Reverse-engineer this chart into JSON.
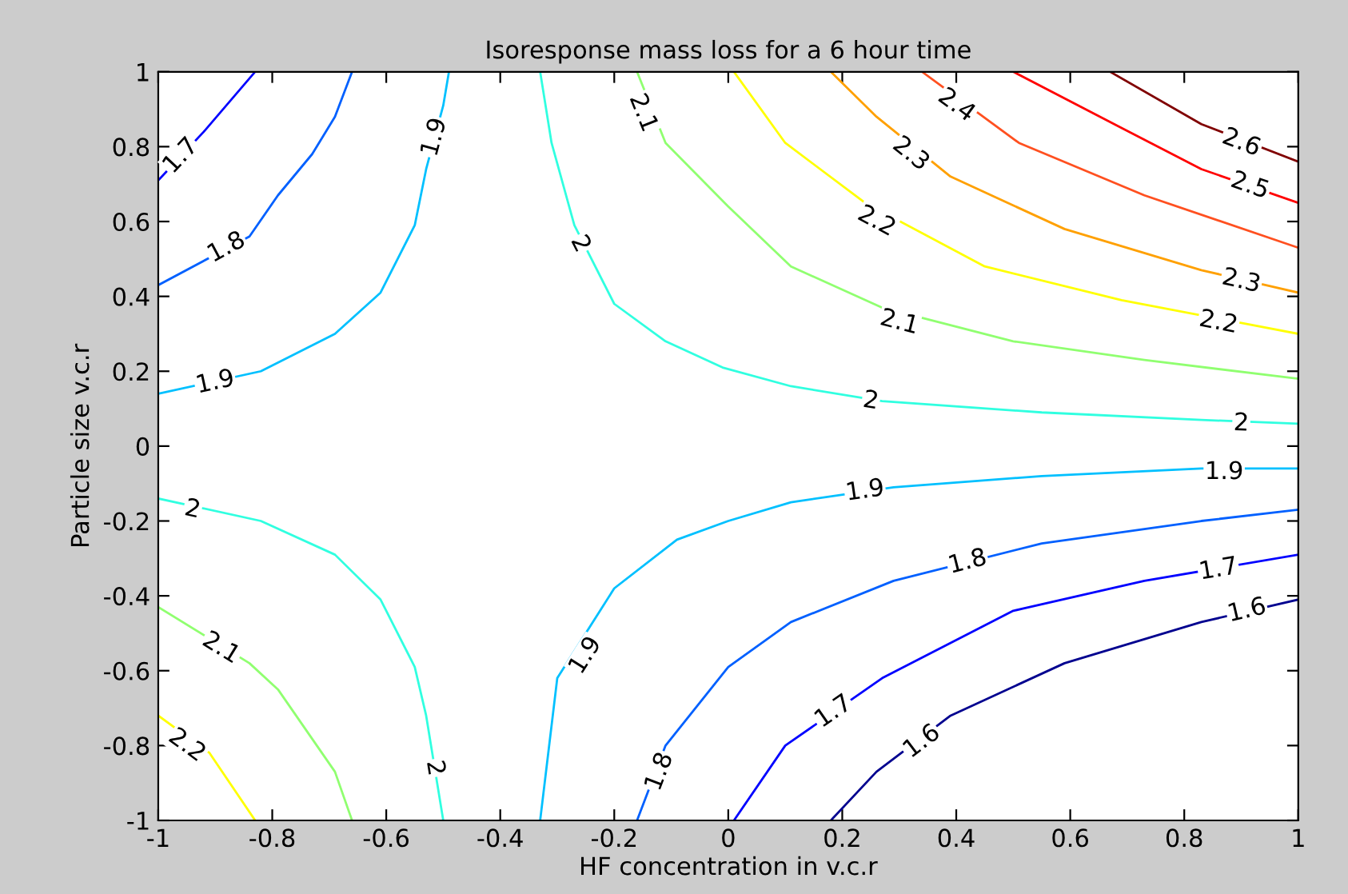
{
  "chart_data": {
    "type": "line",
    "title": "Isoresponse mass loss for a 6 hour time",
    "xlabel": "HF concentration in v.c.r",
    "ylabel": "Particle size v.c.r",
    "xlim": [
      -1,
      1
    ],
    "ylim": [
      -1,
      1
    ],
    "xticks": [
      -1,
      -0.8,
      -0.6,
      -0.4,
      -0.2,
      0,
      0.2,
      0.4,
      0.6,
      0.8,
      1
    ],
    "yticks": [
      -1,
      -0.8,
      -0.6,
      -0.4,
      -0.2,
      0,
      0.2,
      0.4,
      0.6,
      0.8,
      1
    ],
    "grid": false,
    "marker": "none",
    "line_style": "solid",
    "series": [
      {
        "color": "#0000ff",
        "x": [
          -1,
          -0.92,
          -0.83
        ],
        "values": [
          0.71,
          0.84,
          1
        ]
      },
      {
        "color": "#0060ff",
        "x": [
          -1,
          -0.84,
          -0.79,
          -0.73,
          -0.69,
          -0.66
        ],
        "values": [
          0.43,
          0.56,
          0.67,
          0.78,
          0.88,
          1
        ]
      },
      {
        "color": "#00c0ff",
        "x": [
          -1,
          -0.82,
          -0.69,
          -0.61,
          -0.55,
          -0.53,
          -0.5,
          -0.49
        ],
        "values": [
          0.14,
          0.2,
          0.3,
          0.41,
          0.59,
          0.74,
          0.91,
          1
        ]
      },
      {
        "color": "#30ffe0",
        "x": [
          -0.33,
          -0.31,
          -0.27,
          -0.2,
          -0.11,
          -0.01,
          0.11,
          0.27,
          0.55,
          0.83,
          1
        ],
        "values": [
          1,
          0.81,
          0.59,
          0.38,
          0.28,
          0.21,
          0.16,
          0.12,
          0.09,
          0.07,
          0.06
        ]
      },
      {
        "color": "#90ff70",
        "x": [
          -0.16,
          -0.11,
          0,
          0.11,
          0.27,
          0.5,
          0.73,
          1
        ],
        "values": [
          1,
          0.81,
          0.64,
          0.48,
          0.37,
          0.28,
          0.23,
          0.18
        ]
      },
      {
        "color": "#ffff00",
        "x": [
          0.01,
          0.1,
          0.24,
          0.45,
          0.69,
          1
        ],
        "values": [
          1,
          0.81,
          0.65,
          0.48,
          0.39,
          0.3
        ]
      },
      {
        "color": "#ffa000",
        "x": [
          0.18,
          0.26,
          0.39,
          0.59,
          0.83,
          1
        ],
        "values": [
          1,
          0.88,
          0.72,
          0.58,
          0.47,
          0.41
        ]
      },
      {
        "color": "#ff5020",
        "x": [
          0.34,
          0.51,
          0.73,
          1
        ],
        "values": [
          1,
          0.81,
          0.67,
          0.53
        ]
      },
      {
        "color": "#ff0000",
        "x": [
          0.5,
          0.69,
          0.83,
          1
        ],
        "values": [
          1,
          0.85,
          0.74,
          0.65
        ]
      },
      {
        "color": "#800000",
        "x": [
          0.67,
          0.83,
          1
        ],
        "values": [
          1,
          0.86,
          0.76
        ]
      },
      {
        "color": "#30ffe0",
        "x": [
          -1,
          -0.82,
          -0.69,
          -0.61,
          -0.55,
          -0.53,
          -0.5
        ],
        "values": [
          -0.14,
          -0.2,
          -0.29,
          -0.41,
          -0.59,
          -0.72,
          -1
        ]
      },
      {
        "color": "#90ff70",
        "x": [
          -1,
          -0.84,
          -0.79,
          -0.69,
          -0.66
        ],
        "values": [
          -0.43,
          -0.58,
          -0.65,
          -0.87,
          -1
        ]
      },
      {
        "color": "#ffff00",
        "x": [
          -1,
          -0.91,
          -0.83
        ],
        "values": [
          -0.72,
          -0.82,
          -1
        ]
      },
      {
        "color": "#00c0ff",
        "x": [
          -0.33,
          -0.3,
          -0.2,
          -0.09,
          0,
          0.11,
          0.29,
          0.55,
          0.83,
          1
        ],
        "values": [
          -1,
          -0.62,
          -0.38,
          -0.25,
          -0.2,
          -0.15,
          -0.11,
          -0.08,
          -0.06,
          -0.06
        ]
      },
      {
        "color": "#0060ff",
        "x": [
          -0.16,
          -0.11,
          0,
          0.11,
          0.29,
          0.55,
          0.83,
          1
        ],
        "values": [
          -1,
          -0.8,
          -0.59,
          -0.47,
          -0.36,
          -0.26,
          -0.2,
          -0.17
        ]
      },
      {
        "color": "#0000ff",
        "x": [
          0.01,
          0.1,
          0.27,
          0.5,
          0.73,
          1
        ],
        "values": [
          -1,
          -0.8,
          -0.62,
          -0.44,
          -0.36,
          -0.29
        ]
      },
      {
        "color": "#00008f",
        "x": [
          0.18,
          0.26,
          0.39,
          0.59,
          0.83,
          1
        ],
        "values": [
          -1,
          -0.87,
          -0.72,
          -0.58,
          -0.47,
          -0.41
        ]
      }
    ],
    "annotations": [
      {
        "text": "1.7",
        "x": -0.96,
        "y": 0.775
      },
      {
        "text": "1.8",
        "x": -0.88,
        "y": 0.53
      },
      {
        "text": "1.9",
        "x": -0.515,
        "y": 0.825
      },
      {
        "text": "1.9",
        "x": -0.9,
        "y": 0.17
      },
      {
        "text": "2",
        "x": -0.26,
        "y": 0.54
      },
      {
        "text": "2.1",
        "x": -0.15,
        "y": 0.89
      },
      {
        "text": "2.4",
        "x": 0.4,
        "y": 0.91
      },
      {
        "text": "2.3",
        "x": 0.32,
        "y": 0.78
      },
      {
        "text": "2.6",
        "x": 0.9,
        "y": 0.81
      },
      {
        "text": "2.5",
        "x": 0.915,
        "y": 0.695
      },
      {
        "text": "2.2",
        "x": 0.26,
        "y": 0.6
      },
      {
        "text": "2.3",
        "x": 0.9,
        "y": 0.44
      },
      {
        "text": "2.2",
        "x": 0.86,
        "y": 0.33
      },
      {
        "text": "2.1",
        "x": 0.3,
        "y": 0.33
      },
      {
        "text": "2",
        "x": 0.25,
        "y": 0.12
      },
      {
        "text": "2",
        "x": 0.9,
        "y": 0.06
      },
      {
        "text": "2",
        "x": -0.94,
        "y": -0.17
      },
      {
        "text": "2.1",
        "x": -0.89,
        "y": -0.54
      },
      {
        "text": "2.2",
        "x": -0.95,
        "y": -0.8
      },
      {
        "text": "2",
        "x": -0.515,
        "y": -0.86
      },
      {
        "text": "1.9",
        "x": -0.25,
        "y": -0.56
      },
      {
        "text": "1.8",
        "x": -0.12,
        "y": -0.87
      },
      {
        "text": "1.9",
        "x": 0.24,
        "y": -0.12
      },
      {
        "text": "1.9",
        "x": 0.87,
        "y": -0.07
      },
      {
        "text": "1.8",
        "x": 0.42,
        "y": -0.31
      },
      {
        "text": "1.7",
        "x": 0.86,
        "y": -0.33
      },
      {
        "text": "1.6",
        "x": 0.91,
        "y": -0.44
      },
      {
        "text": "1.7",
        "x": 0.185,
        "y": -0.71
      },
      {
        "text": "1.6",
        "x": 0.34,
        "y": -0.79
      }
    ]
  }
}
